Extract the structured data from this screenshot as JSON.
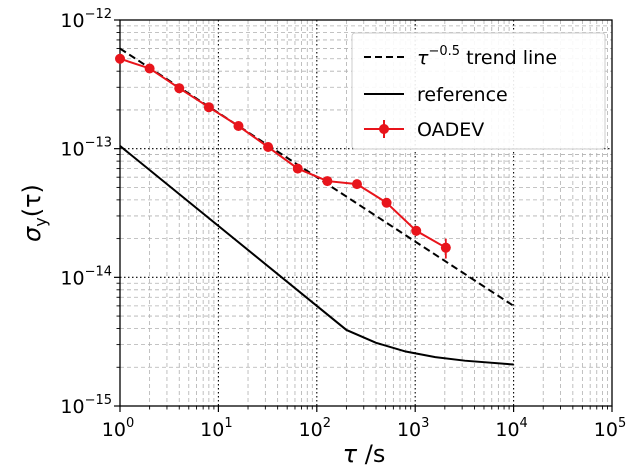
{
  "chart_data": {
    "type": "line",
    "xscale": "log",
    "yscale": "log",
    "xlim": [
      1,
      100000
    ],
    "ylim": [
      1e-15,
      1e-12
    ],
    "grid": true,
    "legend_position": "top-right",
    "xlabel": {
      "symbol": "τ",
      "unit": " /s"
    },
    "ylabel": {
      "symbol": "σ",
      "subscript": "y",
      "arg": "(τ)"
    },
    "x_ticks": [
      {
        "value": 1,
        "base": "10",
        "exp": "0"
      },
      {
        "value": 10,
        "base": "10",
        "exp": "1"
      },
      {
        "value": 100,
        "base": "10",
        "exp": "2"
      },
      {
        "value": 1000,
        "base": "10",
        "exp": "3"
      },
      {
        "value": 10000,
        "base": "10",
        "exp": "4"
      },
      {
        "value": 100000,
        "base": "10",
        "exp": "5"
      }
    ],
    "y_ticks": [
      {
        "value": 1e-15,
        "base": "10",
        "exp": "−15"
      },
      {
        "value": 1e-14,
        "base": "10",
        "exp": "−14"
      },
      {
        "value": 1e-13,
        "base": "10",
        "exp": "−13"
      },
      {
        "value": 1e-12,
        "base": "10",
        "exp": "−12"
      }
    ],
    "series": [
      {
        "name": "τ^−0.5 trend line",
        "legend_base": "τ",
        "legend_exp": "−0.5",
        "legend_rest": " trend line",
        "style": "dashed",
        "color": "#000000",
        "x": [
          1,
          10000
        ],
        "y": [
          6e-13,
          6e-15
        ]
      },
      {
        "name": "reference",
        "style": "solid",
        "color": "#000000",
        "x": [
          1,
          200,
          400,
          800,
          1600,
          3200,
          10000
        ],
        "y": [
          1.05e-13,
          3.9e-15,
          3.1e-15,
          2.65e-15,
          2.4e-15,
          2.25e-15,
          2.1e-15
        ]
      },
      {
        "name": "OADEV",
        "style": "solid-markers",
        "color": "#e8141b",
        "x": [
          1,
          2,
          4,
          8,
          16,
          32,
          64,
          128,
          256,
          512,
          1024,
          2048
        ],
        "y": [
          5e-13,
          4.2e-13,
          2.95e-13,
          2.1e-13,
          1.5e-13,
          1.03e-13,
          7e-14,
          5.6e-14,
          5.3e-14,
          3.8e-14,
          2.3e-14,
          1.7e-14
        ],
        "yerr": [
          0,
          0,
          0,
          0,
          0,
          0,
          0,
          0,
          0,
          0,
          2e-15,
          3e-15
        ]
      }
    ]
  }
}
